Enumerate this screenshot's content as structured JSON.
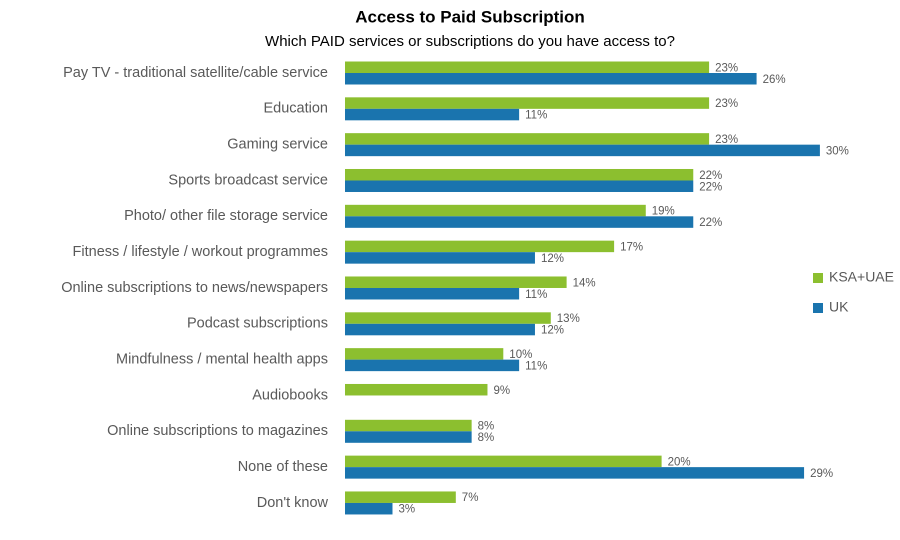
{
  "chart_data": {
    "type": "bar",
    "orientation": "horizontal",
    "title": "Access to Paid Subscription",
    "subtitle": "Which PAID services or subscriptions do you have access to?",
    "categories": [
      "Pay TV - traditional satellite/cable service",
      "Education",
      "Gaming service",
      "Sports broadcast service",
      "Photo/ other file storage service",
      "Fitness / lifestyle / workout programmes",
      "Online subscriptions to news/newspapers",
      "Podcast subscriptions",
      "Mindfulness / mental health apps",
      "Audiobooks",
      "Online subscriptions to magazines",
      "None of these",
      "Don't know"
    ],
    "series": [
      {
        "name": "KSA+UAE",
        "color": "#8cbf2f",
        "values": [
          23,
          23,
          23,
          22,
          19,
          17,
          14,
          13,
          10,
          9,
          8,
          20,
          7
        ],
        "value_labels": [
          "23%",
          "23%",
          "23%",
          "22%",
          "19%",
          "17%",
          "14%",
          "13%",
          "10%",
          "9%",
          "8%",
          "20%",
          "7%"
        ]
      },
      {
        "name": "UK",
        "color": "#1a74ae",
        "values": [
          26,
          11,
          30,
          22,
          22,
          12,
          11,
          12,
          11,
          null,
          8,
          29,
          3
        ],
        "value_labels": [
          "26%",
          "11%",
          "30%",
          "22%",
          "22%",
          "12%",
          "11%",
          "12%",
          "11%",
          null,
          "8%",
          "29%",
          "3%"
        ]
      }
    ],
    "legend": "right"
  }
}
